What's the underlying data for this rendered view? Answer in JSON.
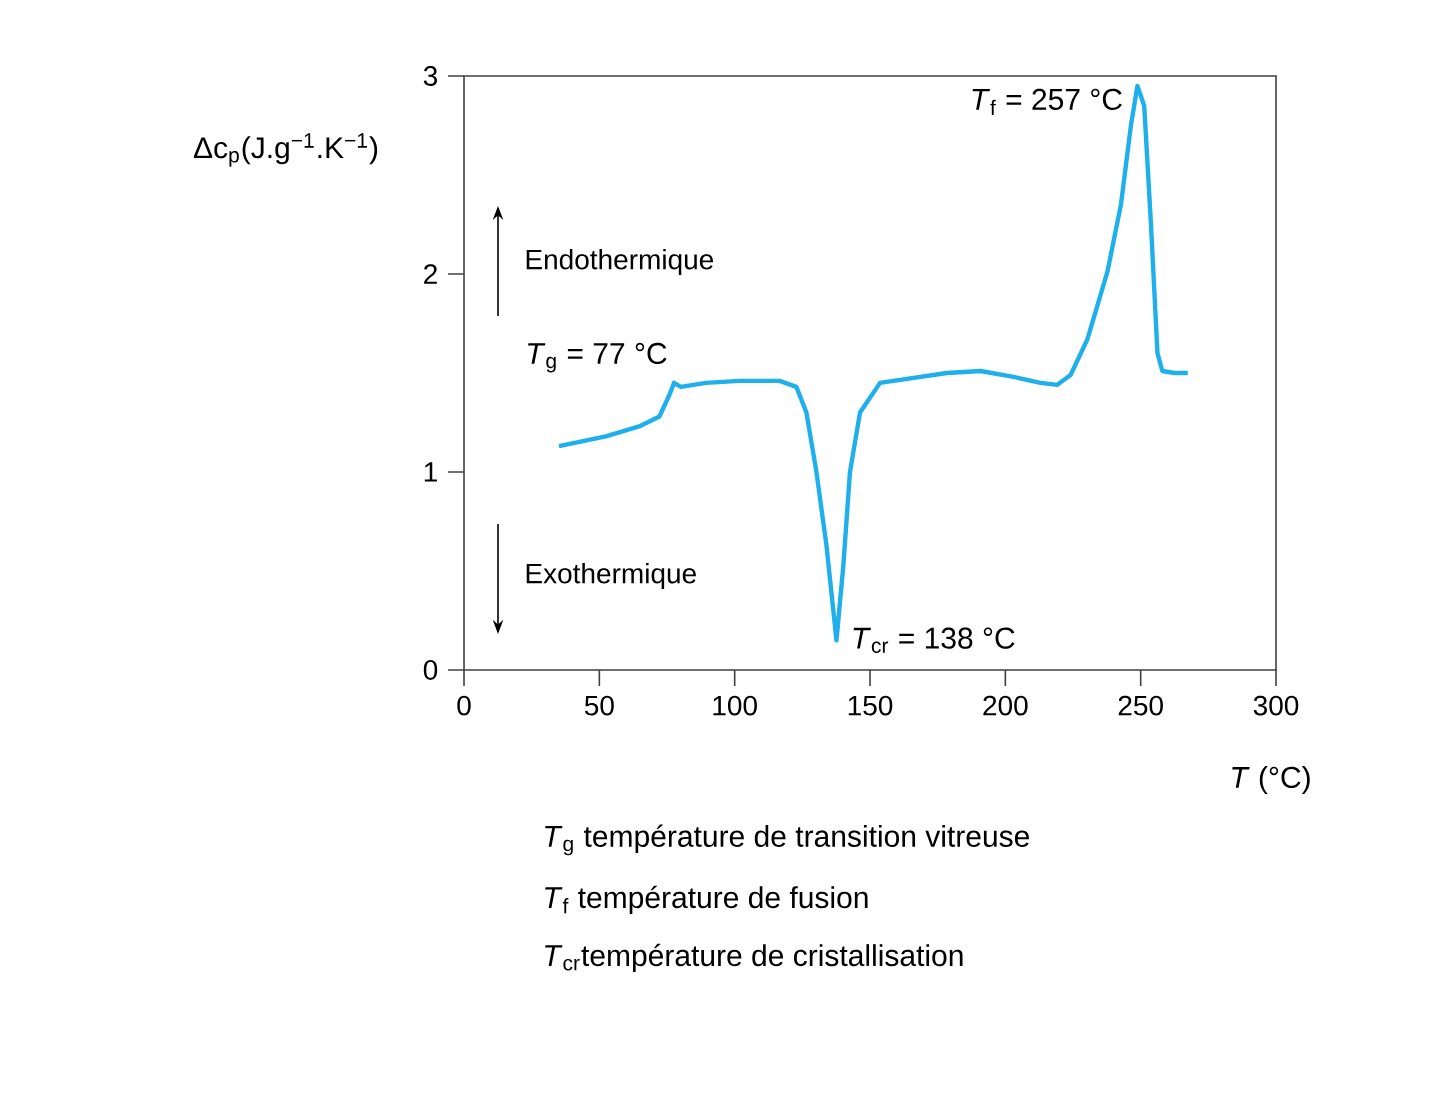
{
  "chart_data": {
    "type": "line",
    "xlabel": "*T* (°C)",
    "ylabel": "Δc$_{p}$(J.g$^{−1}$.K$^{−1}$)",
    "xlim": [
      0,
      300
    ],
    "xticks": [
      0,
      50,
      100,
      150,
      200,
      250,
      300
    ],
    "ylim": [
      0,
      3
    ],
    "yticks": [
      0,
      1,
      2,
      3
    ],
    "series": [
      {
        "color": "#1fb0ec",
        "x": [
          35.1,
          52.4,
          64.7,
          72.2,
          75.9,
          77.6,
          80.1,
          89.4,
          101.8,
          116.6,
          122.8,
          126.5,
          130.2,
          133.9,
          137.6,
          140.1,
          142.6,
          146.3,
          153.7,
          163.6,
          178.4,
          190.8,
          203.1,
          213.0,
          219.2,
          224.1,
          230.3,
          237.7,
          242.7,
          246.4,
          248.8,
          251.3,
          253.8,
          256.2,
          258.0,
          262.4,
          267.4
        ],
        "values": [
          1.13,
          1.18,
          1.23,
          1.28,
          1.39,
          1.45,
          1.43,
          1.45,
          1.46,
          1.46,
          1.43,
          1.3,
          1.0,
          0.63,
          0.15,
          0.52,
          1.0,
          1.3,
          1.45,
          1.47,
          1.5,
          1.51,
          1.48,
          1.45,
          1.44,
          1.49,
          1.67,
          2.01,
          2.35,
          2.75,
          2.95,
          2.85,
          2.25,
          1.6,
          1.51,
          1.5,
          1.5
        ]
      }
    ],
    "annotations": [
      {
        "text": "*T*$_{g}$ = 77 °C",
        "x": 77.6,
        "y": 1.45
      },
      {
        "text": "*T*$_{cr}$ = 138 °C",
        "x": 137.6,
        "y": 0.15
      },
      {
        "text": "*T*$_{f}$ = 257 °C",
        "x": 248.8,
        "y": 2.95
      },
      "Endothermique",
      "Exothermique",
      "*T*$_{g}$ température de transition vitreuse",
      "*T*$_{f}$ température de fusion",
      "*T*$_{cr}$température de cristallisation"
    ]
  }
}
